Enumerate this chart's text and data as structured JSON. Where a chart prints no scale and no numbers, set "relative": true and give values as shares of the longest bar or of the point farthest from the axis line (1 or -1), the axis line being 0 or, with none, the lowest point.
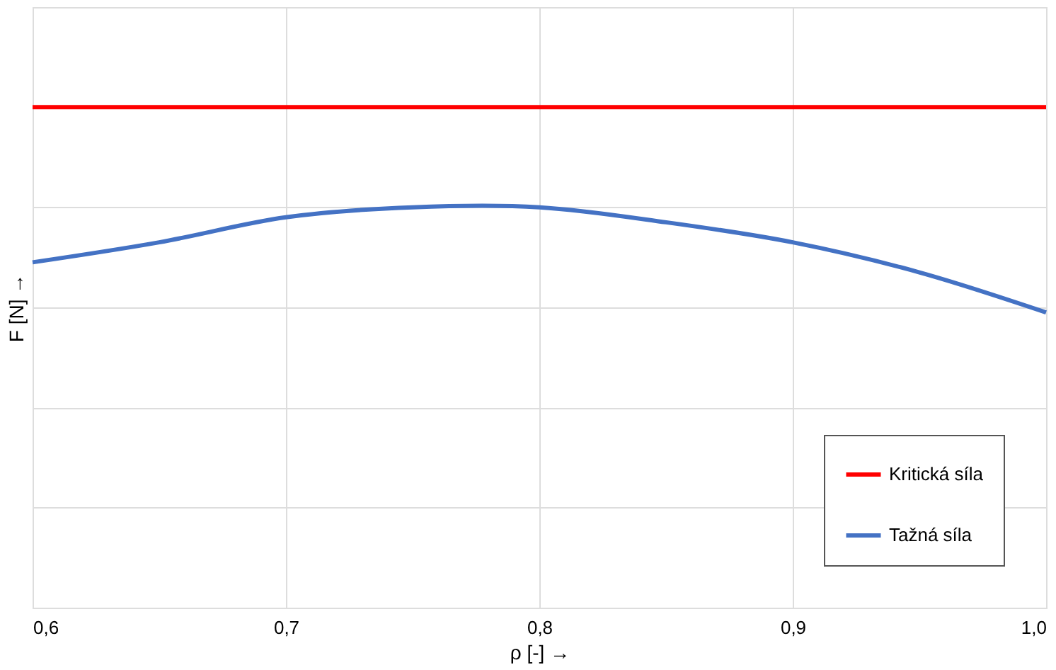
{
  "chart_data": {
    "type": "line",
    "relative": true,
    "xlabel": "ρ [-]  →",
    "ylabel": "F [N]  →",
    "xlim": [
      0.6,
      1.0
    ],
    "xticks": [
      {
        "value": 0.6,
        "label": "0,6"
      },
      {
        "value": 0.7,
        "label": "0,7"
      },
      {
        "value": 0.8,
        "label": "0,8"
      },
      {
        "value": 0.9,
        "label": "0,9"
      },
      {
        "value": 1.0,
        "label": "1,0"
      }
    ],
    "grid": true,
    "legend": "bottom right",
    "marker": "none",
    "line_style": "solid",
    "series": [
      {
        "name": "Kritická síla",
        "color": "#ff0000",
        "x": [
          0.6,
          1.0
        ],
        "values": [
          1,
          1
        ]
      },
      {
        "name": "Tažná síla",
        "color": "#4472c4",
        "x": [
          0.6,
          0.65,
          0.7,
          0.75,
          0.8,
          0.85,
          0.9,
          0.95,
          1.0
        ],
        "values": [
          0.69,
          0.73,
          0.78,
          0.8,
          0.8,
          0.77,
          0.73,
          0.67,
          0.59
        ]
      }
    ]
  }
}
